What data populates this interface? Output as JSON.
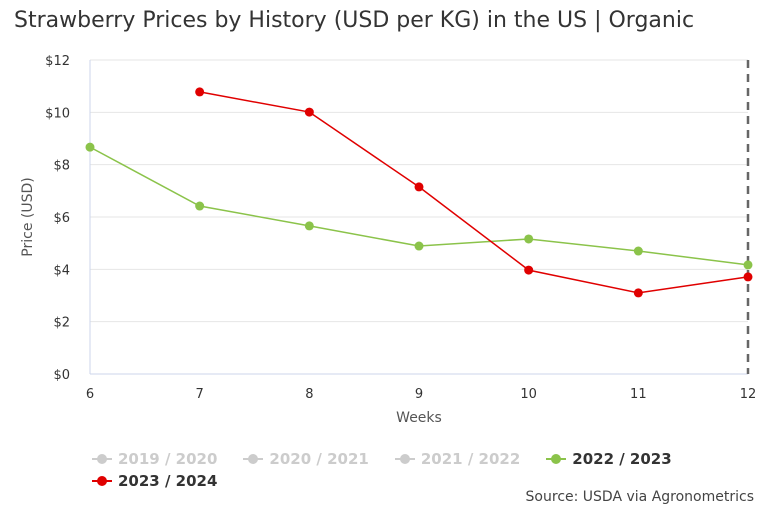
{
  "chart_data": {
    "type": "line",
    "title": "Strawberry Prices by History (USD per KG) in the US | Organic",
    "xlabel": "Weeks",
    "ylabel": "Price (USD)",
    "xlim": [
      6,
      12
    ],
    "ylim": [
      0,
      12
    ],
    "x_ticks": [
      "6",
      "7",
      "8",
      "9",
      "10",
      "11",
      "12"
    ],
    "y_ticks": [
      "$0",
      "$2",
      "$4",
      "$6",
      "$8",
      "$10",
      "$12"
    ],
    "grid": true,
    "legend_position": "bottom",
    "series": [
      {
        "name": "2019 / 2020",
        "visible": false,
        "color": "#cccccc",
        "x": [],
        "y": []
      },
      {
        "name": "2020 / 2021",
        "visible": false,
        "color": "#cccccc",
        "x": [],
        "y": []
      },
      {
        "name": "2021 / 2022",
        "visible": false,
        "color": "#cccccc",
        "x": [],
        "y": []
      },
      {
        "name": "2022 / 2023",
        "visible": true,
        "color": "#8bc34a",
        "x": [
          6,
          7,
          8,
          9,
          10,
          11,
          12
        ],
        "y": [
          8.67,
          6.42,
          5.66,
          4.89,
          5.16,
          4.7,
          4.17
        ]
      },
      {
        "name": "2023 / 2024",
        "visible": true,
        "color": "#e00000",
        "x": [
          7,
          8,
          9,
          10,
          11,
          12
        ],
        "y": [
          10.78,
          10.01,
          7.15,
          3.97,
          3.1,
          3.71
        ]
      }
    ],
    "current_week_marker": 12
  },
  "source": "Source: USDA via Agronometrics"
}
